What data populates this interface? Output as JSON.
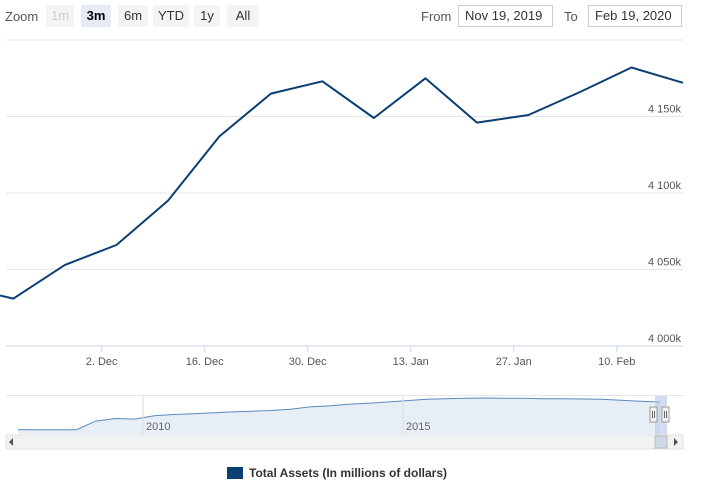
{
  "range_selector": {
    "zoom_label": "Zoom",
    "buttons": [
      {
        "label": "1m",
        "state": "disabled"
      },
      {
        "label": "3m",
        "state": "active"
      },
      {
        "label": "6m",
        "state": "normal"
      },
      {
        "label": "YTD",
        "state": "normal"
      },
      {
        "label": "1y",
        "state": "normal"
      },
      {
        "label": "All",
        "state": "normal"
      }
    ],
    "from_label": "From",
    "from_value": "Nov 19, 2019",
    "to_label": "To",
    "to_value": "Feb 19, 2020"
  },
  "colors": {
    "series": "#0b3e73",
    "grid": "#e6e6e6",
    "navigator_fill": "#e8eef5",
    "navigator_line": "#5a8ac2"
  },
  "chart_data": {
    "type": "line",
    "title": "",
    "xlabel": "",
    "ylabel": "",
    "x_tick_labels": [
      "2. Dec",
      "16. Dec",
      "30. Dec",
      "13. Jan",
      "27. Jan",
      "10. Feb"
    ],
    "y_tick_labels": [
      "4 000k",
      "4 050k",
      "4 100k",
      "4 150k"
    ],
    "ylim": [
      4000000,
      4200000
    ],
    "xlim": [
      "2019-11-19",
      "2020-02-19"
    ],
    "grid": true,
    "legend_position": "bottom-center",
    "series": [
      {
        "name": "Total Assets (In millions of dollars)",
        "points": [
          {
            "x": "2019-11-20",
            "y": 4031000
          },
          {
            "x": "2019-11-27",
            "y": 4053000
          },
          {
            "x": "2019-12-04",
            "y": 4066000
          },
          {
            "x": "2019-12-11",
            "y": 4095000
          },
          {
            "x": "2019-12-18",
            "y": 4137000
          },
          {
            "x": "2019-12-25",
            "y": 4165000
          },
          {
            "x": "2020-01-01",
            "y": 4173000
          },
          {
            "x": "2020-01-08",
            "y": 4149000
          },
          {
            "x": "2020-01-15",
            "y": 4175000
          },
          {
            "x": "2020-01-22",
            "y": 4146000
          },
          {
            "x": "2020-01-29",
            "y": 4151000
          },
          {
            "x": "2020-02-05",
            "y": 4166000
          },
          {
            "x": "2020-02-12",
            "y": 4182000
          },
          {
            "x": "2020-02-19",
            "y": 4172000
          }
        ]
      }
    ],
    "navigator": {
      "x_tick_labels": [
        "2010",
        "2015"
      ],
      "shape": [
        0.04,
        0.04,
        0.04,
        0.04,
        0.3,
        0.38,
        0.36,
        0.46,
        0.5,
        0.52,
        0.55,
        0.58,
        0.6,
        0.62,
        0.66,
        0.73,
        0.76,
        0.81,
        0.84,
        0.88,
        0.92,
        0.96,
        0.98,
        0.99,
        1.0,
        0.99,
        0.99,
        0.98,
        0.98,
        0.97,
        0.96,
        0.93,
        0.9,
        0.88
      ]
    }
  },
  "legend": {
    "label": "Total Assets (In millions of dollars)"
  }
}
